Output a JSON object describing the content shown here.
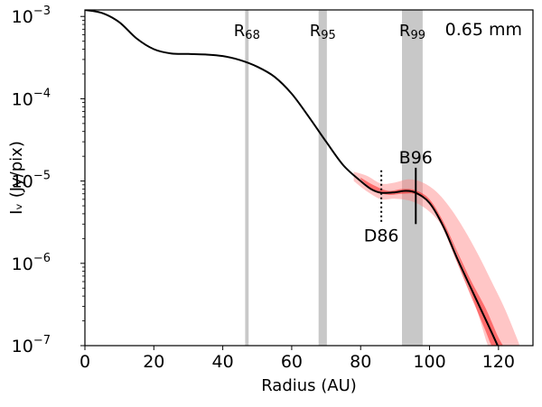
{
  "chart_data": {
    "type": "line",
    "title": "",
    "xlabel": "Radius (AU)",
    "ylabel": "Iᵥ (Jy/pix)",
    "xlim": [
      0,
      130
    ],
    "ylim": [
      1e-07,
      0.0012
    ],
    "yscale": "log",
    "grid": false,
    "legend": "none",
    "wavelength_label": "0.65 mm",
    "x_ticks": [
      {
        "value": 0,
        "label": "0"
      },
      {
        "value": 20,
        "label": "20"
      },
      {
        "value": 40,
        "label": "40"
      },
      {
        "value": 60,
        "label": "60"
      },
      {
        "value": 80,
        "label": "80"
      },
      {
        "value": 100,
        "label": "100"
      },
      {
        "value": 120,
        "label": "120"
      }
    ],
    "y_ticks": [
      {
        "value": 1e-07,
        "base": "10",
        "exp": "−7"
      },
      {
        "value": 1e-06,
        "base": "10",
        "exp": "−6"
      },
      {
        "value": 1e-05,
        "base": "10",
        "exp": "−5"
      },
      {
        "value": 0.0001,
        "base": "10",
        "exp": "−4"
      },
      {
        "value": 0.001,
        "base": "10",
        "exp": "−3"
      }
    ],
    "radius_regions": [
      {
        "name": "R",
        "sub": "68",
        "x0": 46.5,
        "x1": 47.5
      },
      {
        "name": "R",
        "sub": "95",
        "x0": 67.8,
        "x1": 70.2
      },
      {
        "name": "R",
        "sub": "99",
        "x0": 92.0,
        "x1": 98.0
      }
    ],
    "features": [
      {
        "label": "D86",
        "x": 86,
        "style": "dotted",
        "y_top": 1.35e-05,
        "y_bottom": 3e-06
      },
      {
        "label": "B96",
        "x": 96,
        "style": "solid",
        "y_top": 1.45e-05,
        "y_bottom": 3e-06
      }
    ],
    "series": [
      {
        "color": "#000000",
        "x": [
          0,
          5,
          10,
          15,
          20,
          25,
          30,
          35,
          40,
          45,
          50,
          55,
          60,
          65,
          70,
          75,
          80,
          83,
          86,
          90,
          93,
          96,
          100,
          104,
          108,
          112,
          116,
          118,
          120
        ],
        "y": [
          0.0012,
          0.0011,
          0.00085,
          0.00054,
          0.0004,
          0.000355,
          0.00035,
          0.000345,
          0.00033,
          0.000295,
          0.000245,
          0.000185,
          0.000115,
          6e-05,
          3e-05,
          1.55e-05,
          1e-05,
          8e-06,
          7.2e-06,
          7.3e-06,
          7.6e-06,
          7.2e-06,
          5.4e-06,
          2.8e-06,
          1.15e-06,
          5e-07,
          2.2e-07,
          1.45e-07,
          9.5e-08
        ]
      }
    ],
    "uncertainty_bands": [
      {
        "color": "#ff8080",
        "opacity": 0.45,
        "x": [
          78,
          82,
          86,
          90,
          94,
          98,
          102,
          106,
          110,
          114,
          118,
          122,
          126
        ],
        "lower": [
          1e-05,
          7.4e-06,
          6e-06,
          6.1e-06,
          5.8e-06,
          4.9e-06,
          3.5e-06,
          2e-06,
          8.2e-07,
          2.5e-07,
          8e-08,
          8e-08,
          8e-08
        ],
        "upper": [
          1.3e-05,
          1.15e-05,
          9.3e-06,
          9.6e-06,
          1.05e-05,
          9.6e-06,
          7.4e-06,
          4.7e-06,
          2.6e-06,
          1.3e-06,
          6e-07,
          2.7e-07,
          1.05e-07
        ]
      },
      {
        "color": "#ff0000",
        "opacity": 0.45,
        "x": [
          80,
          84,
          88,
          92,
          96,
          100,
          104,
          108,
          112,
          116,
          118,
          120,
          122
        ],
        "lower": [
          1.05e-05,
          7.6e-06,
          6.8e-06,
          7e-06,
          6.9e-06,
          5.3e-06,
          2.6e-06,
          1.02e-06,
          4e-07,
          1.6e-07,
          1e-07,
          8e-08,
          8e-08
        ],
        "upper": [
          1.1e-05,
          8.8e-06,
          7.6e-06,
          8e-06,
          7.7e-06,
          6e-06,
          3.2e-06,
          1.4e-06,
          6.2e-07,
          3e-07,
          1.95e-07,
          1.25e-07,
          9e-08
        ]
      }
    ]
  }
}
